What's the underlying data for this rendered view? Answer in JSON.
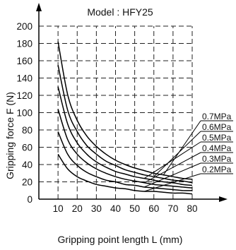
{
  "chart_data": {
    "type": "line",
    "title": "Model : HFY25",
    "xlabel": "Gripping point length L (mm)",
    "ylabel": "Gripping force F (N)",
    "xlim": [
      0,
      80
    ],
    "ylim": [
      0,
      200
    ],
    "x_ticks": [
      10,
      20,
      30,
      40,
      50,
      60,
      70,
      80
    ],
    "y_ticks": [
      0,
      20,
      40,
      60,
      80,
      100,
      120,
      140,
      160,
      180,
      200
    ],
    "grid": "dashed",
    "legend": "right, leader lines to curve ends",
    "x": [
      10,
      15,
      20,
      25,
      30,
      35,
      40,
      45,
      50,
      55,
      60,
      65,
      70,
      75,
      80
    ],
    "series": [
      {
        "name": "0.7MPa",
        "values": [
          182,
          121,
          91,
          73,
          61,
          52,
          45,
          40,
          36,
          33,
          30,
          28,
          26,
          24,
          23
        ]
      },
      {
        "name": "0.6MPa",
        "values": [
          155,
          103,
          78,
          62,
          52,
          44,
          39,
          34,
          31,
          28,
          26,
          24,
          22,
          21,
          19
        ]
      },
      {
        "name": "0.5MPa",
        "values": [
          130,
          87,
          65,
          52,
          43,
          37,
          32,
          29,
          26,
          24,
          22,
          20,
          19,
          17,
          16
        ]
      },
      {
        "name": "0.4MPa",
        "values": [
          104,
          69,
          52,
          42,
          35,
          30,
          26,
          23,
          21,
          19,
          17,
          16,
          15,
          14,
          13
        ]
      },
      {
        "name": "0.3MPa",
        "values": [
          78,
          52,
          39,
          31,
          26,
          22,
          20,
          17,
          16,
          14,
          13,
          12,
          11,
          10,
          10
        ]
      },
      {
        "name": "0.2MPa",
        "values": [
          52,
          35,
          26,
          21,
          17,
          15,
          13,
          12,
          10,
          9,
          9,
          8,
          7,
          7,
          6
        ]
      }
    ]
  }
}
